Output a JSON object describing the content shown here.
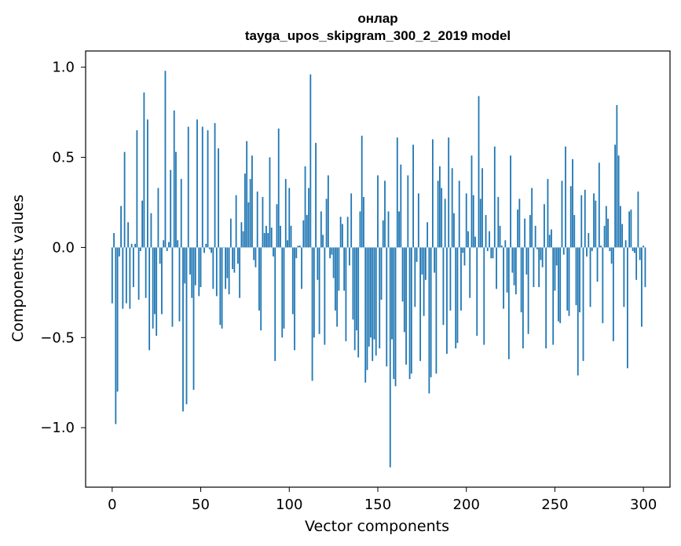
{
  "chart_data": {
    "type": "bar",
    "title": "онлар",
    "subtitle": "tayga_upos_skipgram_300_2_2019 model",
    "xlabel": "Vector components",
    "ylabel": "Components values",
    "xlim": [
      -15,
      315
    ],
    "ylim": [
      -1.33,
      1.09
    ],
    "xticks": [
      0,
      50,
      100,
      150,
      200,
      250,
      300
    ],
    "yticks": [
      -1.0,
      -0.5,
      0.0,
      0.5,
      1.0
    ],
    "xtick_labels": [
      "0",
      "50",
      "100",
      "150",
      "200",
      "250",
      "300"
    ],
    "ytick_labels": [
      "−1.0",
      "−0.5",
      "0.0",
      "0.5",
      "1.0"
    ],
    "grid": false,
    "legend": "none",
    "bar_color": "#1f77b4",
    "values": [
      -0.31,
      0.08,
      -0.98,
      -0.8,
      -0.05,
      0.23,
      -0.34,
      0.53,
      -0.31,
      0.14,
      -0.34,
      0.02,
      -0.22,
      0.02,
      0.65,
      -0.29,
      -0.02,
      0.26,
      0.86,
      -0.28,
      0.71,
      -0.57,
      0.19,
      -0.45,
      -0.37,
      -0.49,
      0.33,
      -0.09,
      -0.37,
      0.04,
      0.98,
      -0.02,
      0.03,
      0.43,
      -0.44,
      0.76,
      0.53,
      0.04,
      -0.41,
      0.38,
      -0.91,
      -0.2,
      -0.87,
      0.67,
      -0.15,
      -0.28,
      -0.79,
      -0.21,
      0.71,
      -0.27,
      -0.22,
      0.67,
      -0.03,
      0.02,
      0.65,
      -0.01,
      -0.03,
      -0.23,
      0.69,
      -0.27,
      0.55,
      -0.43,
      -0.45,
      0.0,
      -0.23,
      -0.17,
      -0.26,
      0.16,
      -0.12,
      -0.14,
      0.29,
      -0.09,
      -0.28,
      0.14,
      0.09,
      0.41,
      0.59,
      0.25,
      0.38,
      0.51,
      -0.07,
      -0.11,
      0.31,
      -0.35,
      -0.46,
      0.28,
      0.08,
      0.12,
      0.08,
      0.5,
      0.11,
      -0.05,
      -0.63,
      0.24,
      0.66,
      0.12,
      -0.5,
      -0.45,
      0.38,
      0.04,
      0.33,
      0.12,
      -0.37,
      -0.57,
      -0.06,
      0.01,
      0.01,
      -0.23,
      0.15,
      0.45,
      0.18,
      0.33,
      0.96,
      -0.74,
      -0.5,
      0.58,
      -0.18,
      -0.48,
      0.2,
      0.07,
      -0.54,
      0.27,
      0.4,
      -0.06,
      -0.04,
      -0.17,
      -0.35,
      -0.44,
      -0.24,
      0.17,
      0.13,
      -0.24,
      -0.52,
      0.17,
      -0.1,
      0.3,
      -0.4,
      -0.57,
      -0.46,
      -0.61,
      0.2,
      0.62,
      0.28,
      -0.75,
      -0.68,
      -0.55,
      -0.5,
      -0.63,
      -0.51,
      -0.6,
      0.4,
      -0.56,
      -0.29,
      0.15,
      0.37,
      -0.66,
      0.2,
      -1.22,
      -0.51,
      -0.73,
      -0.77,
      0.61,
      0.2,
      0.46,
      -0.3,
      -0.47,
      -0.65,
      0.4,
      -0.73,
      -0.7,
      0.57,
      -0.33,
      -0.08,
      0.3,
      -0.63,
      -0.15,
      -0.38,
      -0.18,
      0.14,
      -0.81,
      -0.72,
      0.6,
      -0.14,
      -0.7,
      0.37,
      0.45,
      0.33,
      -0.43,
      0.27,
      -0.59,
      0.61,
      -0.35,
      0.44,
      0.19,
      -0.56,
      -0.53,
      0.37,
      -0.35,
      -0.03,
      -0.1,
      0.3,
      0.09,
      -0.28,
      0.51,
      0.29,
      0.06,
      -0.49,
      0.84,
      0.27,
      0.44,
      -0.54,
      0.18,
      -0.02,
      0.09,
      -0.06,
      -0.06,
      0.56,
      -0.23,
      0.28,
      0.12,
      0.01,
      -0.34,
      0.04,
      -0.25,
      -0.62,
      0.51,
      -0.14,
      -0.21,
      -0.26,
      0.21,
      0.27,
      -0.36,
      -0.56,
      0.16,
      -0.15,
      -0.48,
      0.18,
      0.33,
      -0.22,
      0.12,
      -0.01,
      -0.22,
      -0.07,
      -0.11,
      0.24,
      -0.56,
      0.38,
      0.07,
      0.1,
      -0.54,
      -0.24,
      -0.1,
      -0.41,
      -0.42,
      0.37,
      -0.04,
      0.56,
      -0.35,
      -0.38,
      0.34,
      0.49,
      0.18,
      -0.32,
      -0.71,
      -0.36,
      0.29,
      -0.63,
      0.32,
      -0.05,
      0.08,
      -0.33,
      -0.02,
      0.3,
      0.26,
      -0.19,
      0.47,
      0.01,
      -0.42,
      0.12,
      0.23,
      0.16,
      -0.02,
      -0.09,
      -0.52,
      0.57,
      0.79,
      0.51,
      0.23,
      0.13,
      -0.33,
      0.04,
      -0.67,
      0.2,
      0.21,
      -0.02,
      -0.03,
      -0.18,
      0.31,
      -0.07,
      -0.44,
      0.01,
      -0.22
    ]
  }
}
